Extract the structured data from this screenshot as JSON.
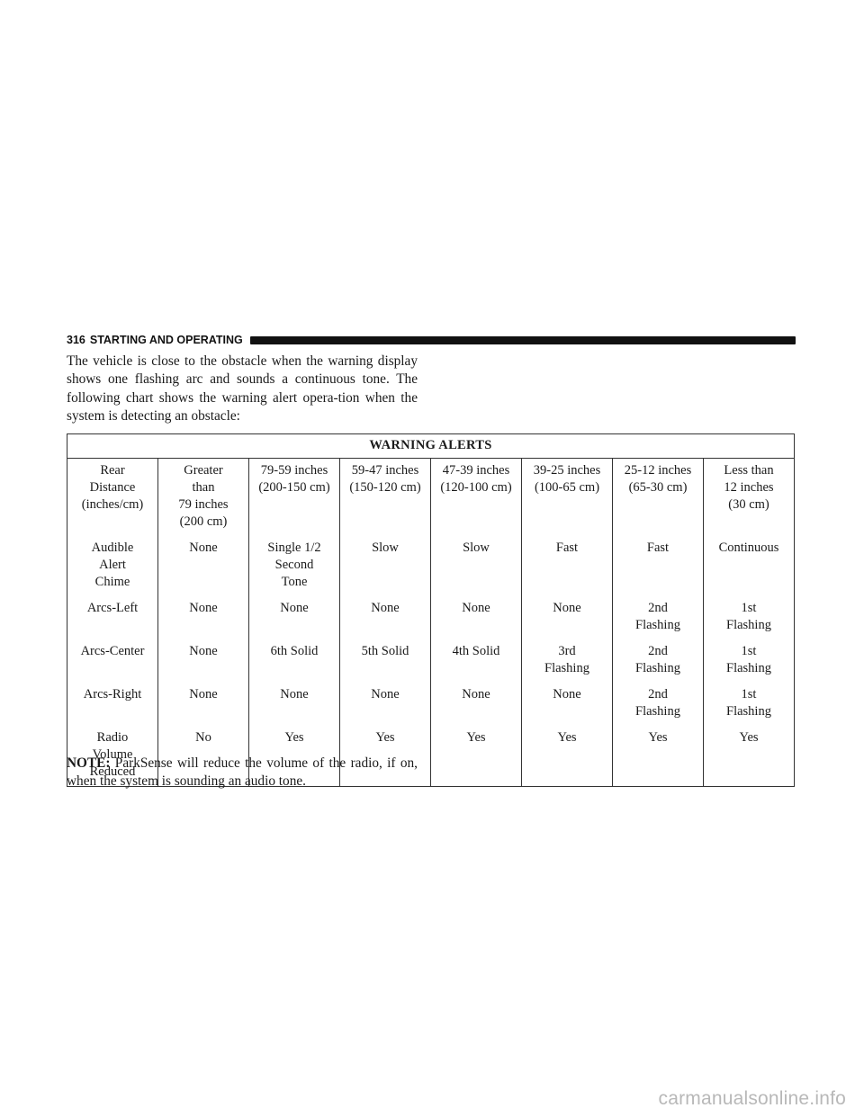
{
  "header": {
    "page_number": "316",
    "section_title": "STARTING AND OPERATING"
  },
  "intro_text": "The vehicle is close to the obstacle when the warning display shows one flashing arc and sounds a continuous tone. The following chart shows the warning alert opera-tion when the system is detecting an obstacle:",
  "table": {
    "title": "WARNING ALERTS",
    "rows": [
      [
        "Rear\nDistance\n(inches/cm)",
        "Greater\nthan\n79 inches\n(200 cm)",
        "79-59 inches\n(200-150 cm)",
        "59-47 inches\n(150-120 cm)",
        "47-39 inches\n(120-100 cm)",
        "39-25 inches\n(100-65 cm)",
        "25-12 inches\n(65-30 cm)",
        "Less than\n12 inches\n(30 cm)"
      ],
      [
        "Audible\nAlert\nChime",
        "None",
        "Single 1/2\nSecond\nTone",
        "Slow",
        "Slow",
        "Fast",
        "Fast",
        "Continuous"
      ],
      [
        "Arcs-Left",
        "None",
        "None",
        "None",
        "None",
        "None",
        "2nd\nFlashing",
        "1st\nFlashing"
      ],
      [
        "Arcs-Center",
        "None",
        "6th Solid",
        "5th Solid",
        "4th Solid",
        "3rd\nFlashing",
        "2nd\nFlashing",
        "1st\nFlashing"
      ],
      [
        "Arcs-Right",
        "None",
        "None",
        "None",
        "None",
        "None",
        "2nd\nFlashing",
        "1st\nFlashing"
      ],
      [
        "Radio\nVolume\nReduced",
        "No",
        "Yes",
        "Yes",
        "Yes",
        "Yes",
        "Yes",
        "Yes"
      ]
    ]
  },
  "note": {
    "label": "NOTE:",
    "text": " ParkSense will reduce the volume of the radio, if on, when the system is sounding an audio tone."
  },
  "watermark": "carmanualsonline.info"
}
